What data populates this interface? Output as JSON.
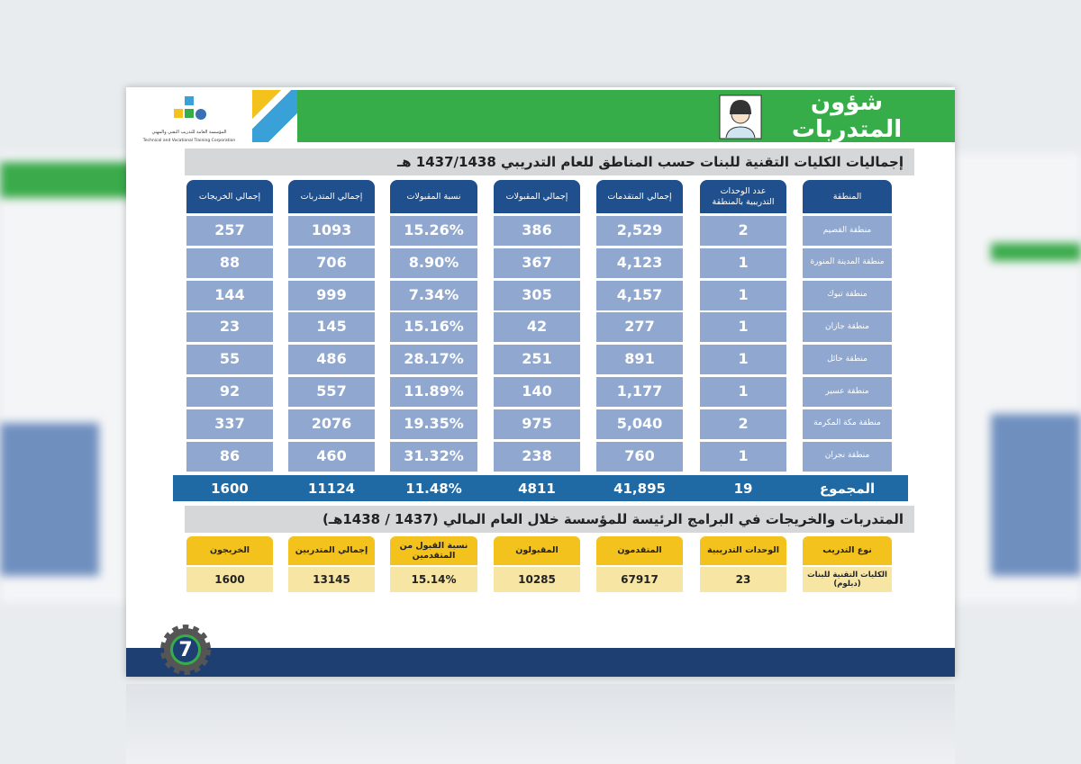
{
  "header": {
    "title": "شؤون المتدربات",
    "logo_text_ar": "المؤسسة العامة للتدريب التقني والمهني",
    "logo_text_en": "Technical and Vocational Training Corporation"
  },
  "section1": {
    "title": "إجماليات الكليات التقنية للبنات حسب المناطق للعام التدريبي 1437/1438 هـ"
  },
  "table": {
    "headers": [
      "المنطقة",
      "عدد الوحدات التدريبية بالمنطقة",
      "إجمالي المتقدمات",
      "إجمالي المقبولات",
      "نسبة المقبولات",
      "إجمالي المتدربات",
      "إجمالي الخريجات"
    ],
    "rows": [
      [
        "منطقة القصيم",
        "2",
        "2,529",
        "386",
        "15.26%",
        "1093",
        "257"
      ],
      [
        "منطقة المدينة المنورة",
        "1",
        "4,123",
        "367",
        "8.90%",
        "706",
        "88"
      ],
      [
        "منطقة تبوك",
        "1",
        "4,157",
        "305",
        "7.34%",
        "999",
        "144"
      ],
      [
        "منطقة جازان",
        "1",
        "277",
        "42",
        "15.16%",
        "145",
        "23"
      ],
      [
        "منطقة حائل",
        "1",
        "891",
        "251",
        "28.17%",
        "486",
        "55"
      ],
      [
        "منطقة عسير",
        "1",
        "1,177",
        "140",
        "11.89%",
        "557",
        "92"
      ],
      [
        "منطقة مكة المكرمة",
        "2",
        "5,040",
        "975",
        "19.35%",
        "2076",
        "337"
      ],
      [
        "منطقة نجران",
        "1",
        "760",
        "238",
        "31.32%",
        "460",
        "86"
      ]
    ],
    "total": [
      "المجموع",
      "19",
      "41,895",
      "4811",
      "11.48%",
      "11124",
      "1600"
    ]
  },
  "section2": {
    "title": "المتدربات والخريجات في البرامج الرئيسة للمؤسسة خلال العام المالي (1437 / 1438هـ)",
    "headers": [
      "نوع التدريب",
      "الوحدات التدريبية",
      "المتقدمون",
      "المقبولون",
      "نسبة القبول من المتقدمين",
      "إجمالي المتدربين",
      "الخريجون"
    ],
    "values": [
      "الكليات التقنية للبنات (دبلوم)",
      "23",
      "67917",
      "10285",
      "15.14%",
      "13145",
      "1600"
    ]
  },
  "footer": {
    "page_number": "7"
  }
}
